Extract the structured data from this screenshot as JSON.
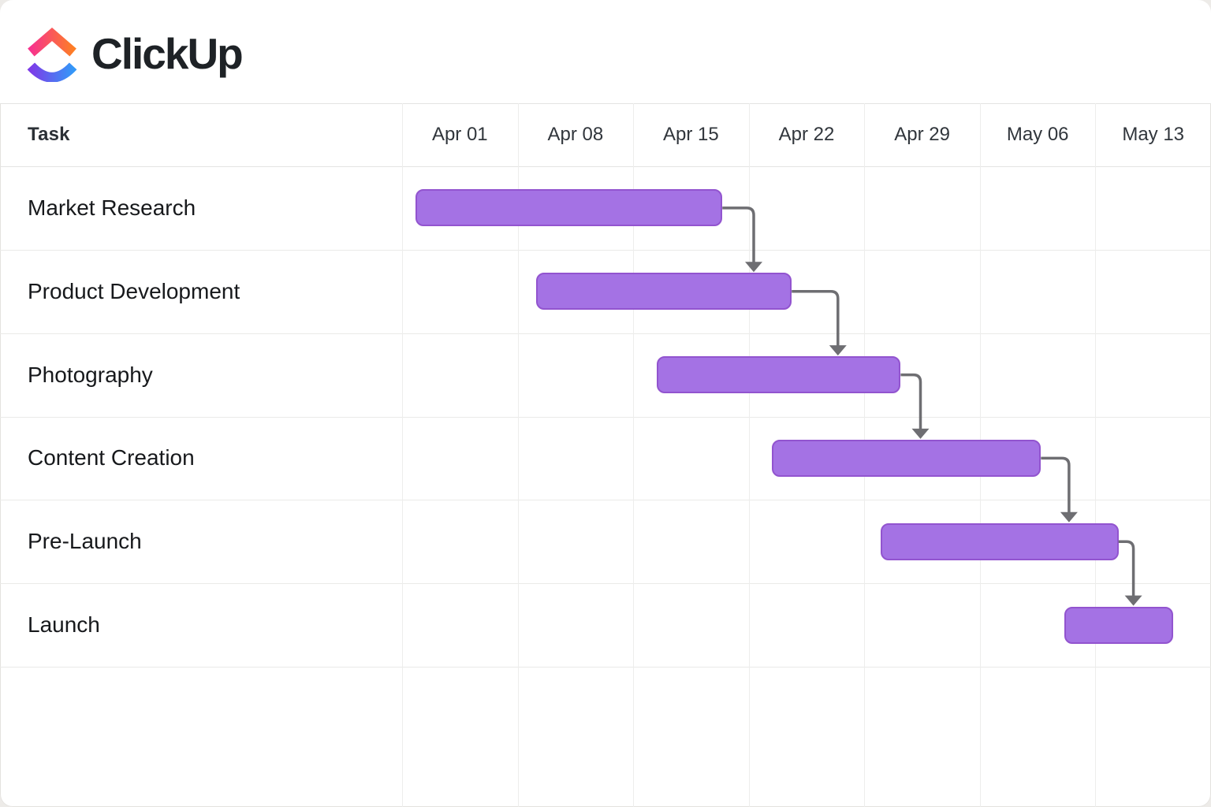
{
  "brand": {
    "name": "ClickUp"
  },
  "table": {
    "task_column_label": "Task"
  },
  "chart_data": {
    "type": "gantt",
    "title": "",
    "x_axis_unit": "weeks",
    "week_labels": [
      "Apr 01",
      "Apr 08",
      "Apr 15",
      "Apr 22",
      "Apr 29",
      "May 06",
      "May 13"
    ],
    "timeline_origin_label": "Apr 01",
    "tasks": [
      {
        "label": "Market Research",
        "start_day": 0.8,
        "end_day": 19.4
      },
      {
        "label": "Product Development",
        "start_day": 8.1,
        "end_day": 23.6
      },
      {
        "label": "Photography",
        "start_day": 15.4,
        "end_day": 30.2
      },
      {
        "label": "Content Creation",
        "start_day": 22.4,
        "end_day": 38.7
      },
      {
        "label": "Pre-Launch",
        "start_day": 29.0,
        "end_day": 43.4
      },
      {
        "label": "Launch",
        "start_day": 40.1,
        "end_day": 46.7
      }
    ],
    "dependencies": [
      {
        "from": 0,
        "to": 1,
        "drop_day": 21.3
      },
      {
        "from": 1,
        "to": 2,
        "drop_day": 26.4
      },
      {
        "from": 2,
        "to": 3,
        "drop_day": 31.4
      },
      {
        "from": 3,
        "to": 4,
        "drop_day": 40.4
      },
      {
        "from": 4,
        "to": 5,
        "drop_day": 44.3
      }
    ],
    "legend": "none",
    "grid": "on"
  },
  "colors": {
    "bar_fill": "#a472e4",
    "bar_border": "#9254cf",
    "connector": "#6e6e72",
    "grid_vertical": "#ededec",
    "grid_horizontal": "#eaeae8",
    "header_line": "#e4e4e2",
    "task_text": "#17191c",
    "header_text": "#31363c",
    "wordmark_text": "#1e2226",
    "logo_chevron_from": "#f7338d",
    "logo_chevron_to": "#fd7e26",
    "logo_swoosh_from": "#7d3ce8",
    "logo_swoosh_to": "#3498f8"
  }
}
